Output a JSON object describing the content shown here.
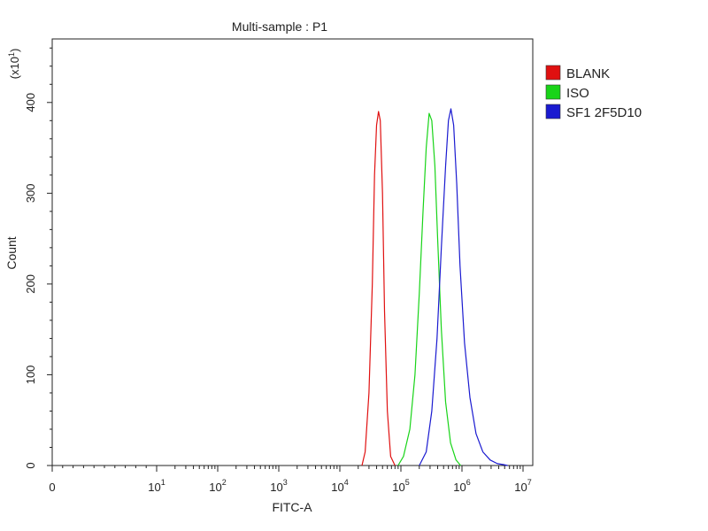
{
  "chart_data": {
    "type": "line",
    "title": "Multi-sample : P1",
    "xlabel": "FITC-A",
    "ylabel": "Count",
    "y_multiplier": "(x10",
    "y_multiplier_exp": "1",
    "y_multiplier_close": ")",
    "x_scale": "log (biexponential, 0 at left)",
    "xlim": [
      0,
      10000000
    ],
    "ylim": [
      0,
      470
    ],
    "x_ticks": [
      {
        "base": "0",
        "exp": "",
        "value": 0
      },
      {
        "base": "10",
        "exp": "1",
        "value": 10
      },
      {
        "base": "10",
        "exp": "2",
        "value": 100
      },
      {
        "base": "10",
        "exp": "3",
        "value": 1000
      },
      {
        "base": "10",
        "exp": "4",
        "value": 10000
      },
      {
        "base": "10",
        "exp": "5",
        "value": 100000
      },
      {
        "base": "10",
        "exp": "6",
        "value": 1000000
      },
      {
        "base": "10",
        "exp": "7",
        "value": 10000000
      }
    ],
    "y_ticks": [
      {
        "label": "0",
        "value": 0
      },
      {
        "label": "100",
        "value": 100
      },
      {
        "label": "200",
        "value": 200
      },
      {
        "label": "300",
        "value": 300
      },
      {
        "label": "400",
        "value": 400
      }
    ],
    "grid": false,
    "legend_position": "right",
    "series": [
      {
        "name": "BLANK",
        "color": "#e01010",
        "x": [
          23000,
          26000,
          30000,
          34000,
          37000,
          40000,
          43000,
          46000,
          50000,
          54000,
          60000,
          68000,
          80000
        ],
        "y": [
          0,
          15,
          80,
          200,
          320,
          375,
          390,
          380,
          300,
          170,
          60,
          10,
          0
        ]
      },
      {
        "name": "ISO",
        "color": "#18d418",
        "x": [
          90000,
          110000,
          140000,
          170000,
          200000,
          230000,
          260000,
          290000,
          320000,
          360000,
          400000,
          460000,
          540000,
          650000,
          800000,
          950000
        ],
        "y": [
          0,
          10,
          40,
          100,
          190,
          280,
          350,
          388,
          380,
          330,
          250,
          150,
          70,
          25,
          6,
          0
        ]
      },
      {
        "name": "SF1 2F5D10",
        "color": "#1a1ad0",
        "x": [
          200000,
          260000,
          320000,
          390000,
          460000,
          540000,
          600000,
          660000,
          730000,
          820000,
          930000,
          1100000,
          1350000,
          1700000,
          2200000,
          2900000,
          3800000,
          4800000,
          5600000
        ],
        "y": [
          0,
          15,
          60,
          140,
          240,
          330,
          380,
          393,
          375,
          310,
          220,
          135,
          75,
          35,
          15,
          6,
          2,
          1,
          0
        ]
      }
    ]
  }
}
